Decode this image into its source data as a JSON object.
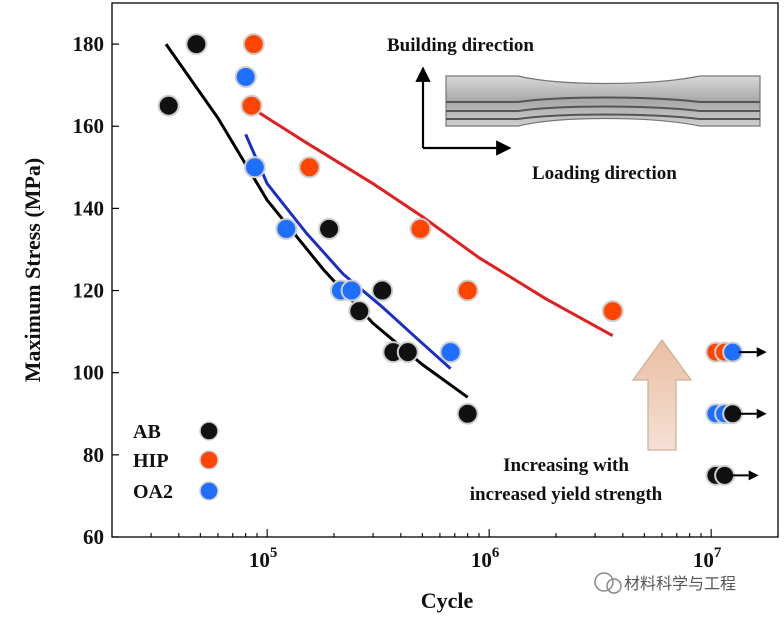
{
  "chart_data": {
    "type": "scatter",
    "xlabel": "Cycle",
    "ylabel": "Maximum Stress (MPa)",
    "x_scale": "log",
    "xlim": [
      20000,
      20000000
    ],
    "ylim": [
      60,
      190
    ],
    "x_ticks": [
      {
        "value": 100000,
        "base": "10",
        "exp": "5"
      },
      {
        "value": 1000000,
        "base": "10",
        "exp": "6"
      },
      {
        "value": 10000000,
        "base": "10",
        "exp": "7"
      }
    ],
    "y_ticks": [
      60,
      80,
      100,
      120,
      140,
      160,
      180
    ],
    "colors": {
      "AB": "#111111",
      "HIP": "#ff4500",
      "OA2": "#1e6fff",
      "fit_AB": "#000000",
      "fit_HIP": "#e02020",
      "fit_OA2": "#1a2fc4"
    },
    "series": [
      {
        "name": "AB",
        "color": "#111111",
        "x": [
          36000,
          48000,
          190000,
          260000,
          330000,
          370000,
          430000,
          800000
        ],
        "y": [
          165,
          180,
          135,
          115,
          120,
          105,
          105,
          90
        ]
      },
      {
        "name": "HIP",
        "color": "#ff4500",
        "x": [
          87000,
          85000,
          155000,
          490000,
          800000,
          3600000
        ],
        "y": [
          180,
          165,
          150,
          135,
          120,
          115
        ]
      },
      {
        "name": "OA2",
        "color": "#1e6fff",
        "x": [
          80000,
          88000,
          122000,
          215000,
          240000,
          670000
        ],
        "y": [
          172,
          150,
          135,
          120,
          120,
          105
        ]
      }
    ],
    "runouts": [
      {
        "series": "HIP",
        "x": 10500000,
        "y": 105
      },
      {
        "series": "HIP",
        "x": 11500000,
        "y": 105
      },
      {
        "series": "OA2",
        "x": 12500000,
        "y": 105
      },
      {
        "series": "OA2",
        "x": 10500000,
        "y": 90
      },
      {
        "series": "OA2",
        "x": 11500000,
        "y": 90
      },
      {
        "series": "AB",
        "x": 12500000,
        "y": 90
      },
      {
        "series": "AB",
        "x": 10500000,
        "y": 75
      },
      {
        "series": "AB",
        "x": 11500000,
        "y": 75
      }
    ],
    "fits": [
      {
        "series": "AB",
        "x": [
          35000,
          60000,
          100000,
          180000,
          300000,
          500000,
          800000
        ],
        "y": [
          180,
          162,
          142,
          125,
          112,
          102,
          94
        ]
      },
      {
        "series": "HIP",
        "x": [
          82000,
          150000,
          300000,
          500000,
          900000,
          1800000,
          3600000
        ],
        "y": [
          165,
          156,
          146,
          138,
          128,
          118,
          109
        ]
      },
      {
        "series": "OA2",
        "x": [
          80000,
          100000,
          150000,
          220000,
          330000,
          480000,
          670000
        ],
        "y": [
          158,
          146,
          134,
          124,
          116,
          108,
          101
        ]
      }
    ],
    "legend": [
      {
        "label": "AB",
        "color": "#111111"
      },
      {
        "label": "HIP",
        "color": "#ff4500"
      },
      {
        "label": "OA2",
        "color": "#1e6fff"
      }
    ],
    "annotations": {
      "building_direction": "Building direction",
      "loading_direction": "Loading direction",
      "increase_line1": "Increasing with",
      "increase_line2": "increased yield strength"
    }
  },
  "watermark": "材料科学与工程"
}
